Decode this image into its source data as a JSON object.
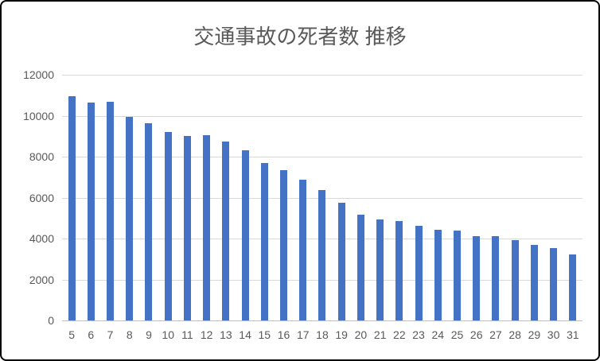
{
  "chart_data": {
    "type": "bar",
    "title": "交通事故の死者数 推移",
    "categories": [
      "5",
      "6",
      "7",
      "8",
      "9",
      "10",
      "11",
      "12",
      "13",
      "14",
      "15",
      "16",
      "17",
      "18",
      "19",
      "20",
      "21",
      "22",
      "23",
      "24",
      "25",
      "26",
      "27",
      "28",
      "29",
      "30",
      "31"
    ],
    "values": [
      10942,
      10649,
      10679,
      9942,
      9640,
      9211,
      9006,
      9066,
      8747,
      8326,
      7702,
      7358,
      6871,
      6352,
      5744,
      5155,
      4914,
      4863,
      4612,
      4411,
      4373,
      4113,
      4117,
      3904,
      3694,
      3532,
      3215
    ],
    "xlabel": "",
    "ylabel": "",
    "ylim": [
      0,
      12000
    ],
    "yticks": [
      0,
      2000,
      4000,
      6000,
      8000,
      10000,
      12000
    ],
    "grid": true,
    "legend": false
  },
  "colors": {
    "bar": "#4472c4",
    "gridline": "#d9d9d9",
    "axis_line": "#bfbfbf",
    "text": "#595959",
    "frame_border": "#000000",
    "background": "#ffffff"
  }
}
